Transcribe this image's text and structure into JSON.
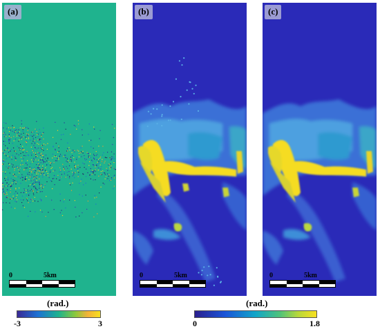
{
  "panels": [
    {
      "label": "(a)"
    },
    {
      "label": "(b)"
    },
    {
      "label": "(c)"
    }
  ],
  "scalebar": {
    "start_label": "0",
    "end_label": "5km"
  },
  "colorbar_a": {
    "unit": "(rad.)",
    "min_label": "-3",
    "max_label": "3",
    "min": -3,
    "max": 3
  },
  "colorbar_b": {
    "unit": "(rad.)",
    "min_label": "0",
    "max_label": "1.8",
    "min": 0,
    "max": 1.8
  },
  "colors": {
    "background_a": "#1fb38e",
    "background_bc": "#2a2ab8",
    "high_value": "#f8e020"
  }
}
